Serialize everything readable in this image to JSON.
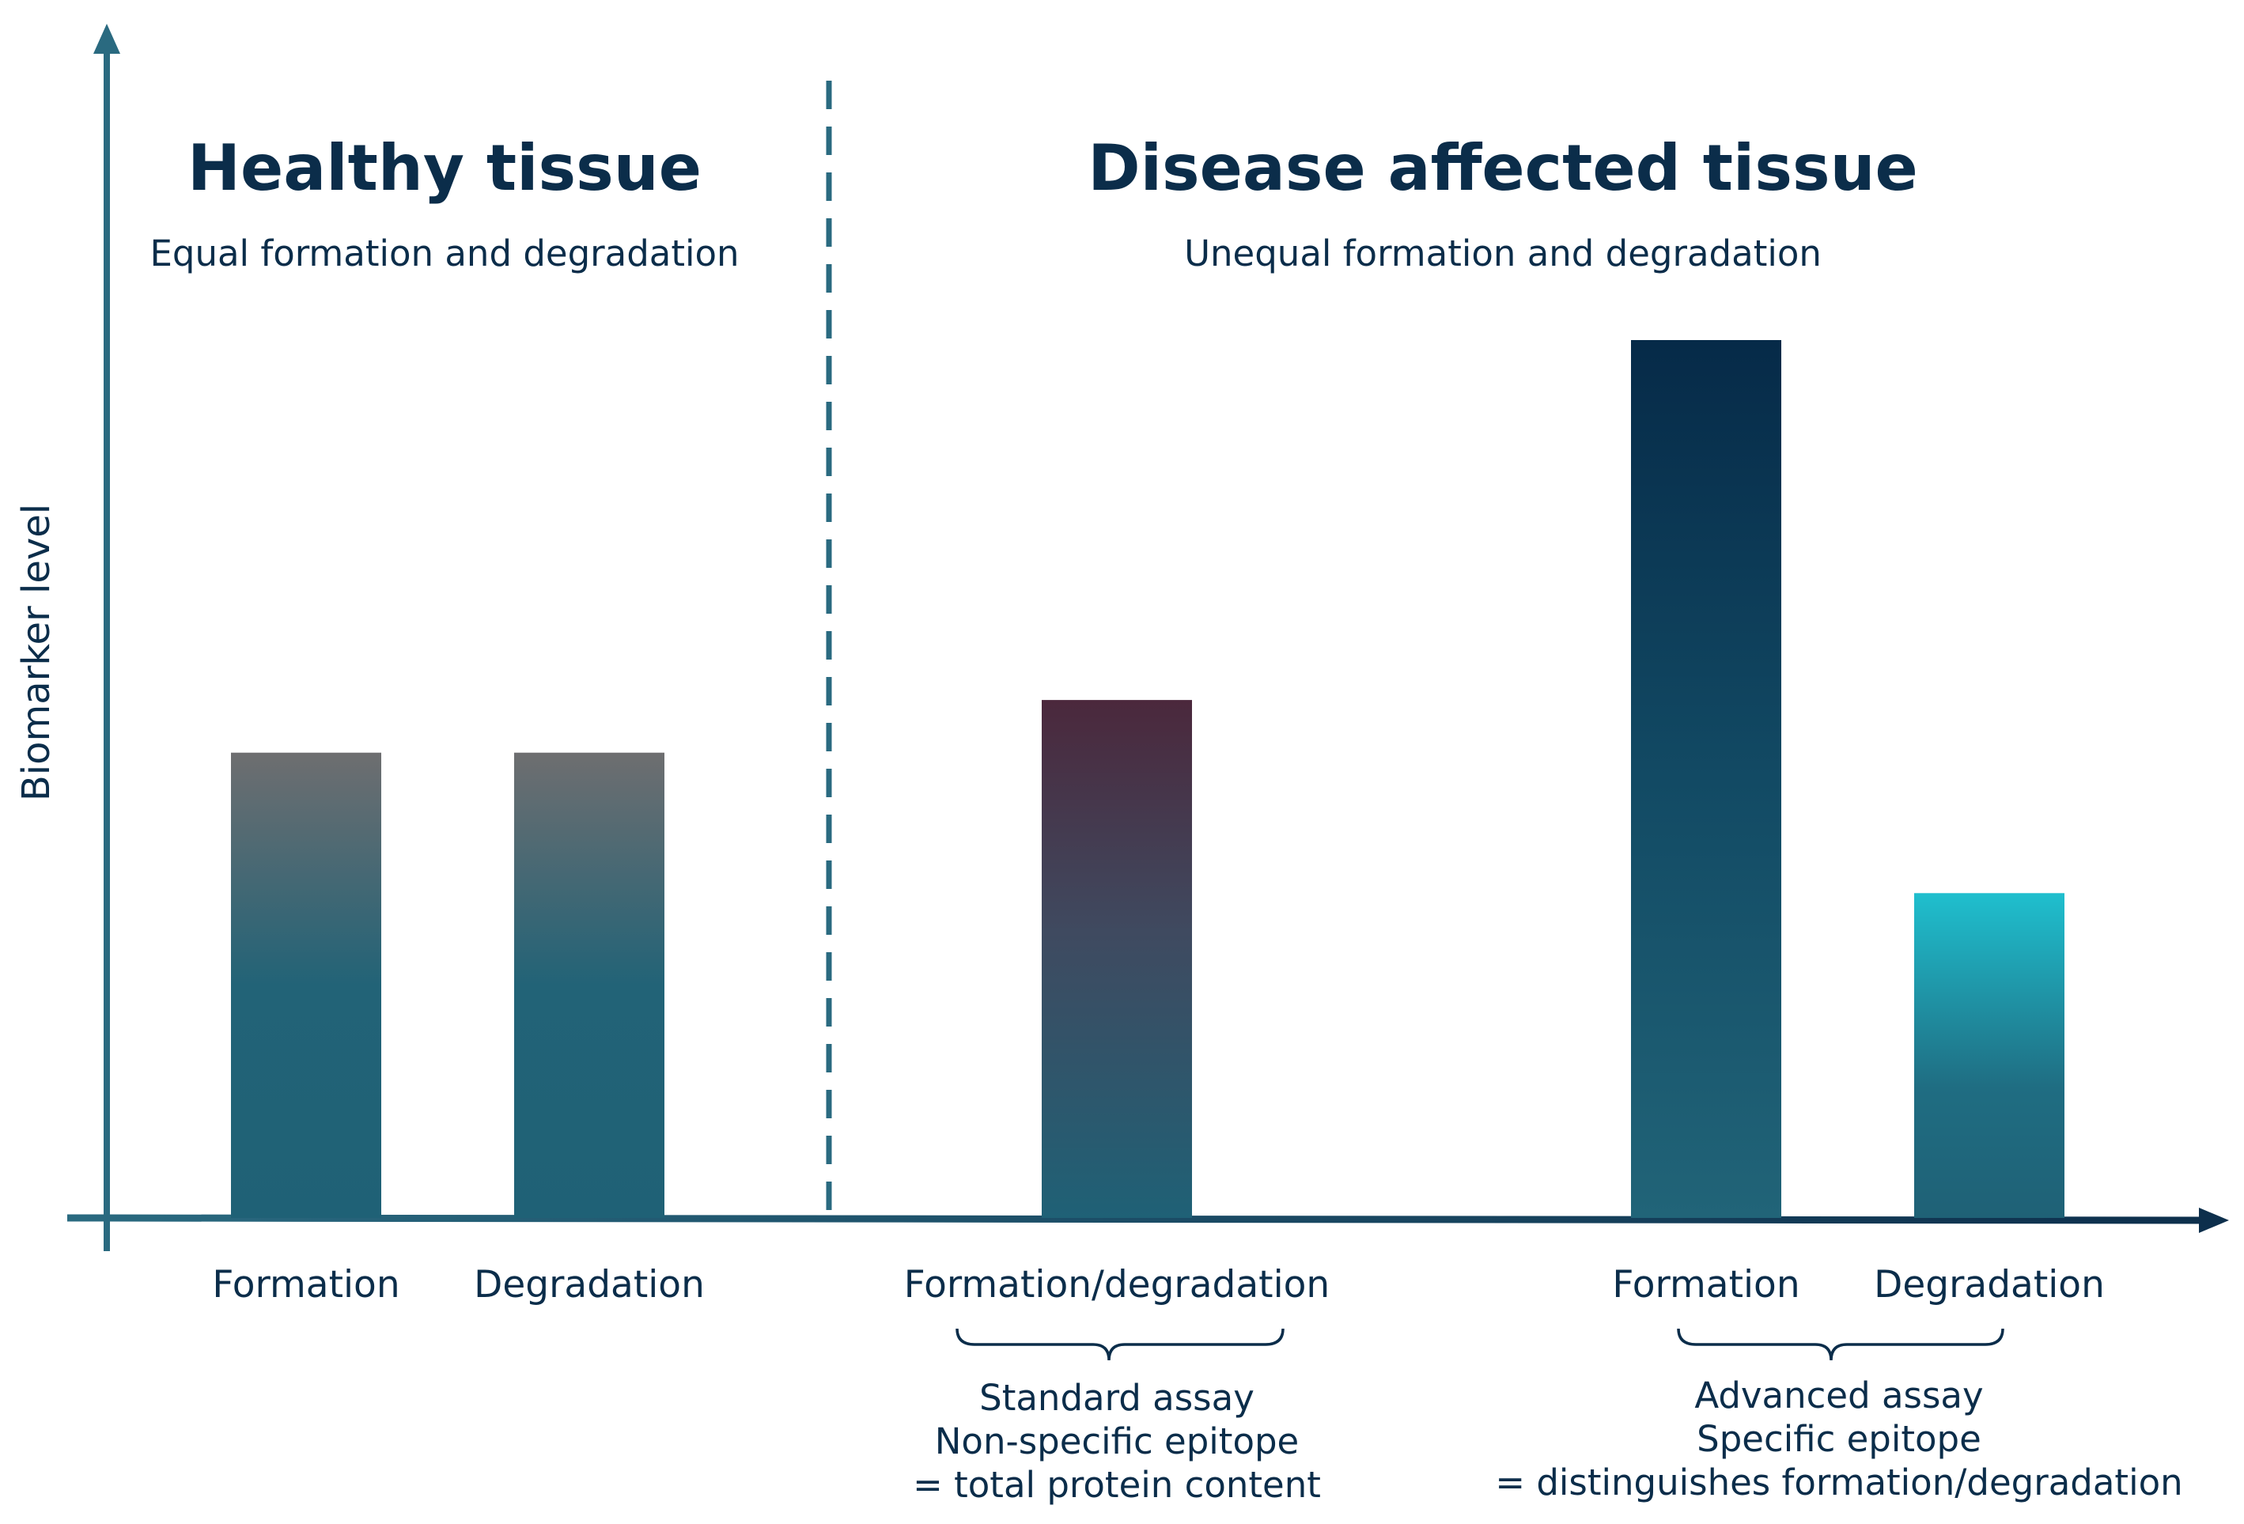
{
  "y_axis_label": "Biomarker level",
  "sections": {
    "healthy": {
      "title": "Healthy tissue",
      "subtitle": "Equal formation and degradation"
    },
    "disease": {
      "title": "Disease affected tissue",
      "subtitle": "Unequal formation and degradation"
    }
  },
  "bars": [
    {
      "label": "Formation",
      "value": 53,
      "gradient": "grey-teal"
    },
    {
      "label": "Degradation",
      "value": 53,
      "gradient": "grey-teal"
    },
    {
      "label": "Formation/degradation",
      "value": 59,
      "gradient": "plum-teal"
    },
    {
      "label": "Formation",
      "value": 100,
      "gradient": "navy-teal"
    },
    {
      "label": "Degradation",
      "value": 37,
      "gradient": "cyan-teal"
    }
  ],
  "annotations": {
    "standard": [
      "Standard assay",
      "Non-specific epitope",
      "= total protein content"
    ],
    "advanced": [
      "Advanced assay",
      "Specific epitope",
      "= distinguishes formation/degradation"
    ]
  },
  "colors": {
    "axis": "#2a6a80",
    "text": "#0b2d4a",
    "teal": "#1f6176"
  }
}
